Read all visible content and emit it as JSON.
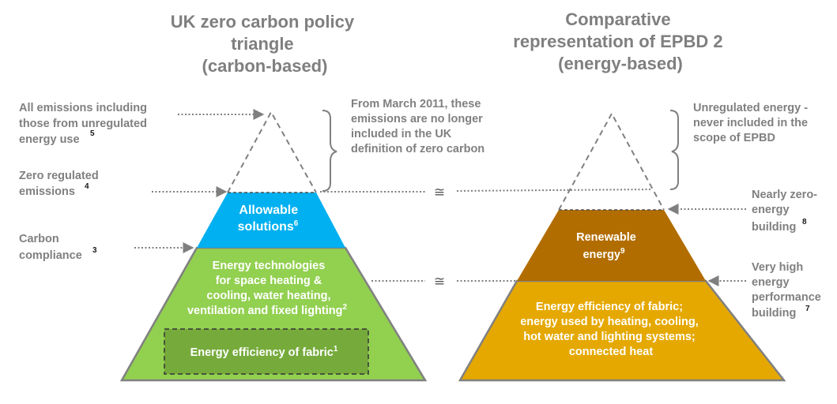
{
  "left_diagram": {
    "title": [
      "UK zero carbon policy",
      "triangle",
      "(carbon-based)"
    ],
    "annotations": {
      "all_emissions": {
        "lines": [
          "All emissions including",
          "those from unregulated",
          "energy use"
        ],
        "ref": "5"
      },
      "zero_regulated": {
        "lines": [
          "Zero regulated",
          "emissions"
        ],
        "ref": "4"
      },
      "carbon_compliance": {
        "lines": [
          "Carbon",
          "compliance"
        ],
        "ref": "3"
      }
    },
    "layers": {
      "allowable": {
        "lines": [
          "Allowable",
          "solutions"
        ],
        "ref": "6",
        "color": "#00b0f0"
      },
      "technologies": {
        "lines": [
          "Energy technologies",
          "for space heating &",
          "cooling, water heating,",
          "ventilation and fixed lighting"
        ],
        "ref": "2",
        "color": "#92d050"
      },
      "fabric": {
        "text": "Energy efficiency of fabric",
        "ref": "1",
        "color": "#76ab3c"
      }
    }
  },
  "middle_note": [
    "From March 2011, these",
    "emissions are no longer",
    "included in the UK",
    "definition of zero carbon"
  ],
  "equivalence_symbol": "≅",
  "right_diagram": {
    "title": [
      "Comparative",
      "representation of EPBD 2",
      "(energy-based)"
    ],
    "annotations": {
      "unregulated": {
        "lines": [
          "Unregulated energy -",
          "never included in the",
          "scope of EPBD"
        ]
      },
      "nearly_zero": {
        "lines": [
          "Nearly zero-",
          "energy",
          "building"
        ],
        "ref": "8"
      },
      "very_high": {
        "lines": [
          "Very high",
          "energy",
          "performance",
          "building"
        ],
        "ref": "7"
      }
    },
    "layers": {
      "renewable": {
        "lines": [
          "Renewable",
          "energy"
        ],
        "ref": "9",
        "color": "#b26d00"
      },
      "efficiency": {
        "lines": [
          "Energy efficiency of fabric;",
          "energy used by heating, cooling,",
          "hot water and lighting systems;",
          "connected heat"
        ],
        "color": "#e5a800"
      }
    }
  },
  "colors": {
    "text_grey": "#808080",
    "arrow_grey": "#7f7f7f"
  }
}
